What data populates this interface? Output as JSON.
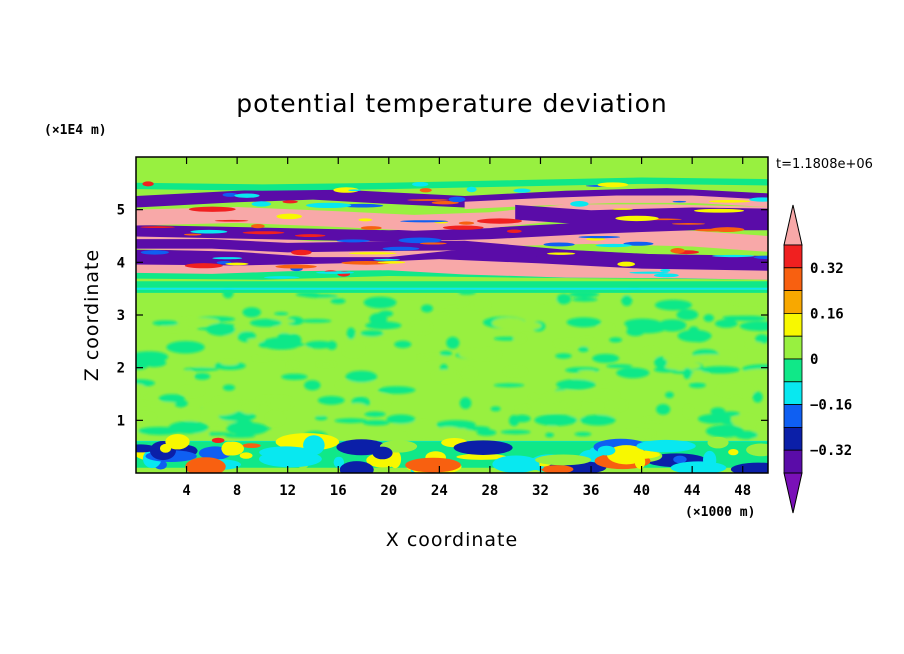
{
  "chart_data": {
    "type": "heatmap",
    "title": "potential temperature deviation",
    "xlabel": "X coordinate",
    "ylabel": "Z coordinate",
    "x_unit": "(×1000 m)",
    "y_unit": "(×1E4 m)",
    "time_label": "t=1.1808e+06",
    "xlim": [
      0,
      50
    ],
    "ylim": [
      0,
      6
    ],
    "x_ticks": [
      4,
      8,
      12,
      16,
      20,
      24,
      28,
      32,
      36,
      40,
      44,
      48
    ],
    "y_ticks": [
      1,
      2,
      3,
      4,
      5
    ],
    "colorbar": {
      "levels": [
        -0.4,
        -0.32,
        -0.24,
        -0.16,
        -0.08,
        0,
        0.08,
        0.16,
        0.24,
        0.32,
        0.4
      ],
      "tick_values": [
        0.32,
        0.16,
        0,
        -0.16,
        -0.32
      ],
      "tick_labels": [
        "0.32",
        "0.16",
        "0",
        "−0.16",
        "−0.32"
      ],
      "colors": [
        "#7a10b8",
        "#5a0ca8",
        "#0b1fa8",
        "#0f5ff2",
        "#08e8f0",
        "#10e888",
        "#98f040",
        "#f8f800",
        "#f8a800",
        "#f86010",
        "#f02020",
        "#f8a8a8"
      ],
      "extend": "both"
    },
    "regions": [
      {
        "z_range": [
          0,
          0.7
        ],
        "description": "lower layer with mixed small cells near 0"
      },
      {
        "z_range": [
          0.7,
          3.5
        ],
        "value": 0.02
      },
      {
        "z_range": [
          3.7,
          5.5
        ],
        "description": "alternating bands of strong positive and negative deviation"
      },
      {
        "z_range": [
          5.5,
          6
        ],
        "value": 0.03
      }
    ]
  },
  "colors": {
    "background": "#ffffff",
    "axis": "#000000"
  }
}
